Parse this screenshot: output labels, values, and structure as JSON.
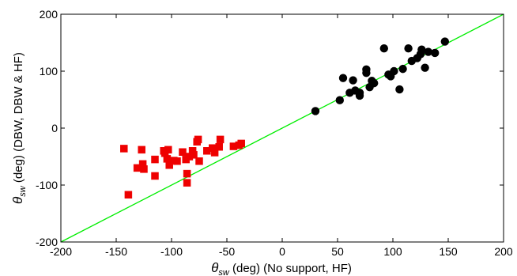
{
  "chart_data": {
    "type": "scatter",
    "xlabel": "θsw (deg) (No support, HF)",
    "xlabel_parts": {
      "symbol": "θ",
      "subscript": "sw",
      "rest": " (deg) (No support, HF)"
    },
    "ylabel": "θsw (deg) (DBW, DBW & HF)",
    "ylabel_parts": {
      "symbol": "θ",
      "subscript": "sw",
      "rest": " (deg) (DBW, DBW & HF)"
    },
    "xlim": [
      -200,
      200
    ],
    "ylim": [
      -200,
      200
    ],
    "x_ticks": [
      -200,
      -150,
      -100,
      -50,
      0,
      50,
      100,
      150,
      200
    ],
    "y_ticks": [
      -200,
      -100,
      0,
      100,
      200
    ],
    "grid": false,
    "legend": "none",
    "reference_line": {
      "x": [
        -200,
        200
      ],
      "y": [
        -200,
        200
      ],
      "color": "#00ee00"
    },
    "series": [
      {
        "marker": "square",
        "color": "#ee0000",
        "points": [
          [
            -143,
            -36
          ],
          [
            -139,
            -117
          ],
          [
            -131,
            -70
          ],
          [
            -127,
            -38
          ],
          [
            -126,
            -63
          ],
          [
            -125,
            -72
          ],
          [
            -115,
            -55
          ],
          [
            -115,
            -84
          ],
          [
            -107,
            -40
          ],
          [
            -106,
            -44
          ],
          [
            -104,
            -54
          ],
          [
            -103,
            -38
          ],
          [
            -102,
            -65
          ],
          [
            -98,
            -57
          ],
          [
            -95,
            -58
          ],
          [
            -90,
            -42
          ],
          [
            -87,
            -55
          ],
          [
            -86,
            -80
          ],
          [
            -86,
            -96
          ],
          [
            -84,
            -50
          ],
          [
            -81,
            -40
          ],
          [
            -80,
            -47
          ],
          [
            -77,
            -24
          ],
          [
            -76,
            -20
          ],
          [
            -75,
            -58
          ],
          [
            -68,
            -40
          ],
          [
            -63,
            -35
          ],
          [
            -61,
            -43
          ],
          [
            -57,
            -33
          ],
          [
            -56,
            -20
          ],
          [
            -44,
            -32
          ],
          [
            -39,
            -30
          ],
          [
            -37,
            -27
          ]
        ]
      },
      {
        "marker": "circle",
        "color": "#000000",
        "points": [
          [
            30,
            30
          ],
          [
            52,
            49
          ],
          [
            55,
            88
          ],
          [
            61,
            62
          ],
          [
            64,
            84
          ],
          [
            66,
            66
          ],
          [
            70,
            62
          ],
          [
            70,
            57
          ],
          [
            76,
            97
          ],
          [
            76,
            103
          ],
          [
            79,
            72
          ],
          [
            81,
            83
          ],
          [
            83,
            79
          ],
          [
            92,
            140
          ],
          [
            96,
            94
          ],
          [
            98,
            91
          ],
          [
            101,
            100
          ],
          [
            106,
            68
          ],
          [
            109,
            104
          ],
          [
            114,
            140
          ],
          [
            117,
            118
          ],
          [
            122,
            123
          ],
          [
            125,
            130
          ],
          [
            126,
            138
          ],
          [
            129,
            106
          ],
          [
            132,
            134
          ],
          [
            138,
            132
          ],
          [
            147,
            152
          ]
        ]
      }
    ]
  }
}
